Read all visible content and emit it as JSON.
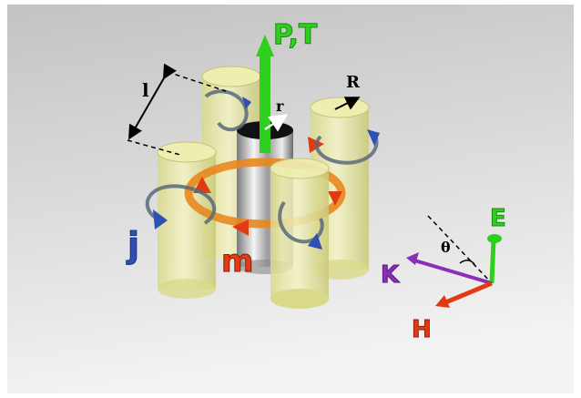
{
  "labels": {
    "power_torque": "P,T",
    "current": "j",
    "magnetization": "m",
    "length": "l",
    "outer_radius": "R",
    "inner_radius": "r",
    "electric_field": "E",
    "magnetic_field": "H",
    "wave_vector": "K",
    "angle": "θ"
  },
  "colors": {
    "background_top": "#c7c7c7",
    "background_bottom": "#f2f2f2",
    "cylinder_fill": "#e6e69a",
    "cylinder_edge": "#b8b86a",
    "green_arrow": "#2fcf1e",
    "orange_ring": "#e8871e",
    "red_arrow": "#e23a12",
    "blue_arrow": "#2f4fb5",
    "purple_arrow": "#8a2fb8",
    "metal": "#c9c9c9"
  }
}
